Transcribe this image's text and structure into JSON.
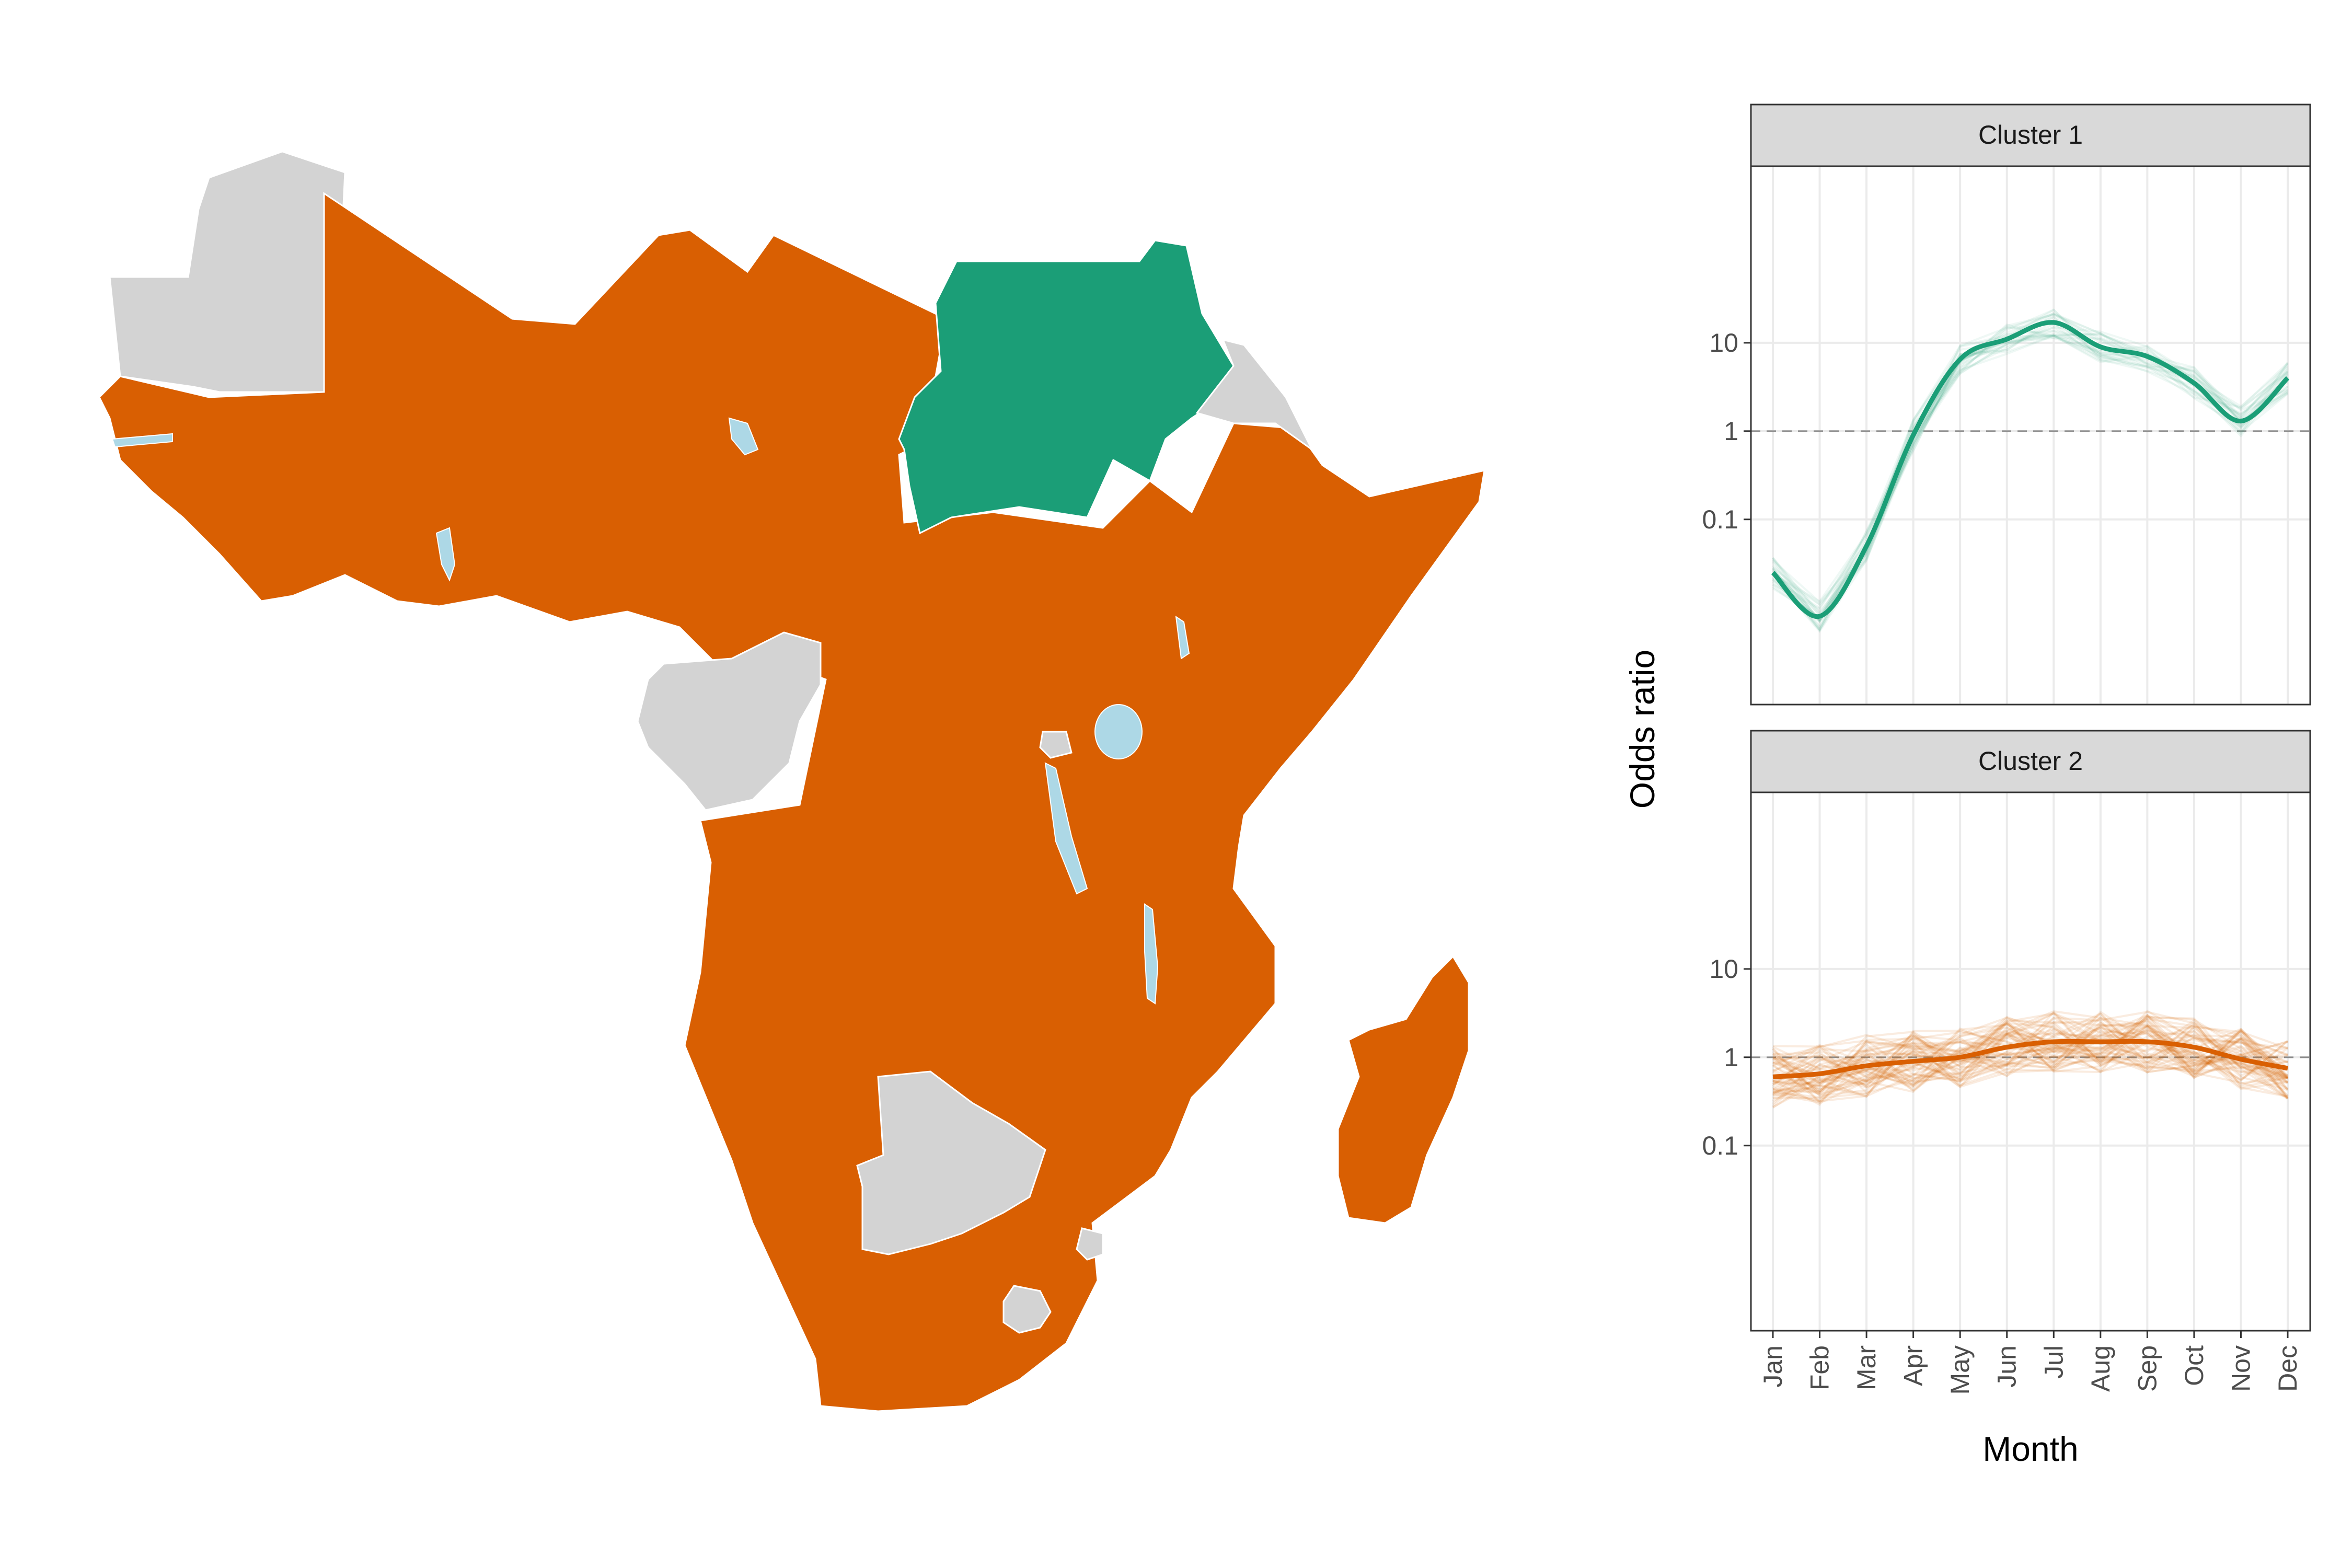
{
  "colors": {
    "cluster_1": "#1b9e77",
    "cluster_2": "#d95f02",
    "no_data": "#d3d3d3",
    "water": "#add8e6",
    "borders": "#ffffff",
    "strip_fill": "#d9d9d9",
    "grid": "#ebebeb",
    "reference_line": "#8c8c8c"
  },
  "map": {
    "regions": [
      {
        "name": "cluster-1-region",
        "cluster": "Cluster 1"
      },
      {
        "name": "cluster-2-region",
        "cluster": "Cluster 2"
      },
      {
        "name": "no-data-region",
        "cluster": ""
      }
    ]
  },
  "chart_data": {
    "type": "line",
    "xlabel": "Month",
    "ylabel": "Odds ratio",
    "x_scale": "categorical",
    "y_scale": "log10",
    "categories": [
      "Jan",
      "Feb",
      "Mar",
      "Apr",
      "May",
      "Jun",
      "Jul",
      "Aug",
      "Sep",
      "Oct",
      "Nov",
      "Dec"
    ],
    "y_ticks": [
      0.1,
      1,
      10
    ],
    "y_tick_labels": [
      "0.1",
      "1",
      "10"
    ],
    "ylim": [
      0.0008,
      1000
    ],
    "reference_line": 1,
    "grid": true,
    "legend": "none",
    "panels": [
      {
        "title": "Cluster 1",
        "color": "#1b9e77",
        "series": [
          {
            "values": [
              0.025,
              0.008,
              0.05,
              0.9,
              6.5,
              11,
              17,
              9,
              7,
              3.5,
              1.3,
              4
            ]
          }
        ]
      },
      {
        "title": "Cluster 2",
        "color": "#d95f02",
        "series": [
          {
            "values": [
              0.6,
              0.65,
              0.8,
              0.9,
              1.0,
              1.3,
              1.5,
              1.5,
              1.5,
              1.3,
              0.95,
              0.75
            ]
          }
        ]
      }
    ]
  }
}
